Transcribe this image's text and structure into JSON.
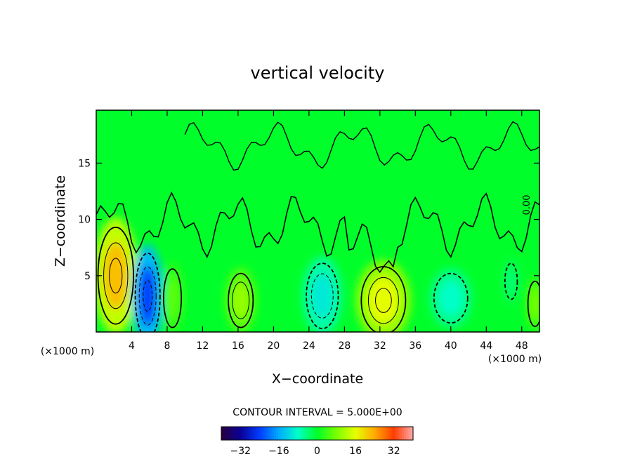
{
  "chart_data": {
    "type": "heatmap",
    "title": "vertical velocity",
    "xlabel": "X−coordinate",
    "ylabel": "Z−coordinate",
    "x_unit": "(×1000 m)",
    "y_unit": "(×1000 m)",
    "xlim": [
      0,
      50
    ],
    "ylim": [
      0,
      19.7
    ],
    "x_ticks": [
      4,
      8,
      12,
      16,
      20,
      24,
      28,
      32,
      36,
      40,
      44,
      48
    ],
    "y_ticks": [
      5,
      10,
      15
    ],
    "zero_contour_label": "0.00",
    "contour_interval_text": "CONTOUR INTERVAL = 5.000E+00",
    "colorbar": {
      "min": -40,
      "max": 40,
      "ticks": [
        -32,
        -16,
        0,
        16,
        32
      ]
    },
    "features": [
      {
        "x": 2.2,
        "z": 5.0,
        "value": 22
      },
      {
        "x": 5.8,
        "z": 3.2,
        "value": -24
      },
      {
        "x": 8.6,
        "z": 3.0,
        "value": 6
      },
      {
        "x": 16.3,
        "z": 2.8,
        "value": 10
      },
      {
        "x": 25.5,
        "z": 3.2,
        "value": -10
      },
      {
        "x": 32.4,
        "z": 2.8,
        "value": 16
      },
      {
        "x": 40.0,
        "z": 3.0,
        "value": -8
      },
      {
        "x": 46.8,
        "z": 4.5,
        "value": -4
      },
      {
        "x": 49.5,
        "z": 2.5,
        "value": 8
      }
    ]
  }
}
